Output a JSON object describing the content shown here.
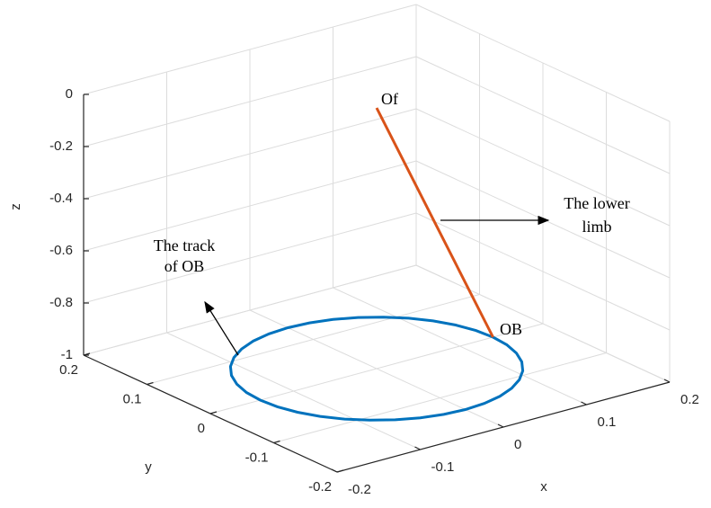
{
  "chart_data": {
    "type": "line3d",
    "xlabel": "x",
    "ylabel": "y",
    "zlabel": "z",
    "xlim": [
      -0.2,
      0.2
    ],
    "ylim": [
      -0.2,
      0.2
    ],
    "zlim": [
      -1,
      0
    ],
    "xticks": [
      -0.2,
      -0.1,
      0,
      0.1,
      0.2
    ],
    "yticks": [
      -0.2,
      -0.1,
      0,
      0.1,
      0.2
    ],
    "zticks": [
      -1,
      -0.8,
      -0.6,
      -0.4,
      -0.2,
      0
    ],
    "grid": true,
    "series": [
      {
        "color": "#0072bd",
        "x": [
          0.14,
          0.1379,
          0.1316,
          0.1212,
          0.1072,
          0.09,
          0.07,
          0.0479,
          0.0243,
          0,
          -0.0243,
          -0.0479,
          -0.07,
          -0.09,
          -0.1072,
          -0.1212,
          -0.1316,
          -0.1379,
          -0.14,
          -0.1379,
          -0.1316,
          -0.1212,
          -0.1072,
          -0.09,
          -0.07,
          -0.0479,
          -0.0243,
          0,
          0.0243,
          0.0479,
          0.07,
          0.09,
          0.1072,
          0.1212,
          0.1316,
          0.1379,
          0.14
        ],
        "y": [
          0,
          0.0243,
          0.0479,
          0.07,
          0.09,
          0.1072,
          0.1212,
          0.1316,
          0.1379,
          0.14,
          0.1379,
          0.1316,
          0.1212,
          0.1072,
          0.09,
          0.07,
          0.0479,
          0.0243,
          0,
          -0.0243,
          -0.0479,
          -0.07,
          -0.09,
          -0.1072,
          -0.1212,
          -0.1316,
          -0.1379,
          -0.14,
          -0.1379,
          -0.1316,
          -0.1212,
          -0.1072,
          -0.09,
          -0.07,
          -0.0479,
          -0.0243,
          0
        ],
        "z": [
          -1,
          -1,
          -1,
          -1,
          -1,
          -1,
          -1,
          -1,
          -1,
          -1,
          -1,
          -1,
          -1,
          -1,
          -1,
          -1,
          -1,
          -1,
          -1,
          -1,
          -1,
          -1,
          -1,
          -1,
          -1,
          -1,
          -1,
          -1,
          -1,
          -1,
          -1,
          -1,
          -1,
          -1,
          -1,
          -1,
          -1
        ]
      },
      {
        "color": "#d95319",
        "x": [
          0,
          0.14
        ],
        "y": [
          0,
          0
        ],
        "z": [
          0,
          -1
        ]
      }
    ],
    "annotations": {
      "of": "Of",
      "ob": "OB",
      "track": [
        "The track",
        "of OB"
      ],
      "limb": [
        "The lower",
        "limb"
      ]
    }
  }
}
